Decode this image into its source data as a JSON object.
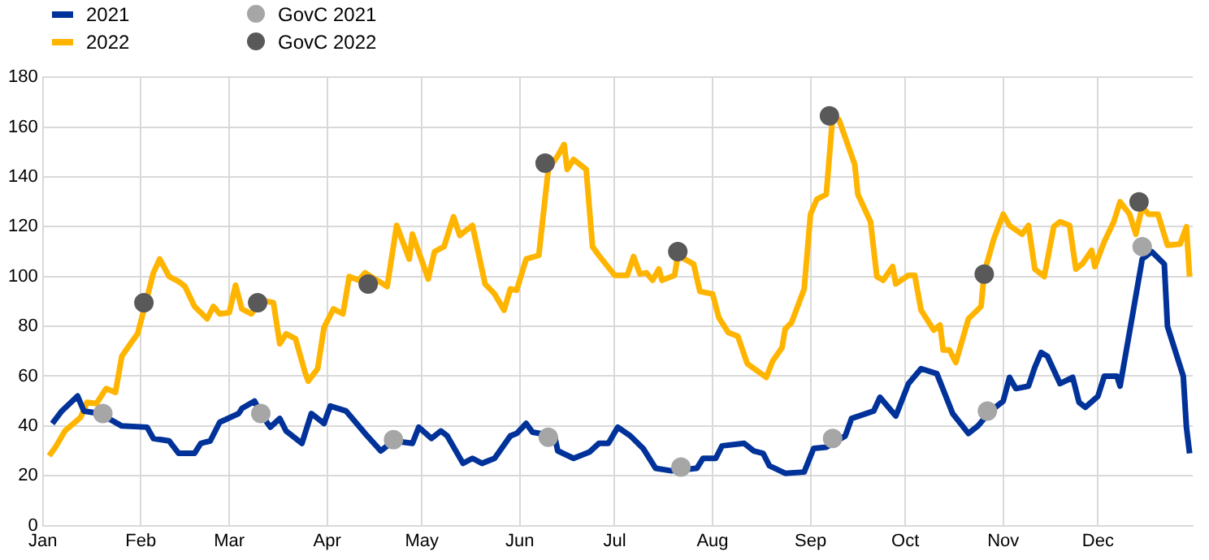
{
  "chart_data": {
    "type": "line",
    "xlim": [
      "--01-01",
      "--12-31"
    ],
    "xticks": [
      {
        "value": "--01-01",
        "label": "Jan"
      },
      {
        "value": "--02-01",
        "label": "Feb"
      },
      {
        "value": "--03-01",
        "label": "Mar"
      },
      {
        "value": "--04-01",
        "label": "Apr"
      },
      {
        "value": "--05-01",
        "label": "May"
      },
      {
        "value": "--06-01",
        "label": "Jun"
      },
      {
        "value": "--07-01",
        "label": "Jul"
      },
      {
        "value": "--08-01",
        "label": "Aug"
      },
      {
        "value": "--09-01",
        "label": "Sep"
      },
      {
        "value": "--10-01",
        "label": "Oct"
      },
      {
        "value": "--11-01",
        "label": "Nov"
      },
      {
        "value": "--12-01",
        "label": "Dec"
      }
    ],
    "ylim": [
      0,
      180
    ],
    "yticks": [
      0,
      20,
      40,
      60,
      80,
      100,
      120,
      140,
      160,
      180
    ],
    "grid": true,
    "legend": "top left",
    "series": [
      {
        "name": "2021",
        "color": "#003299",
        "x": [
          "--01-04",
          "--01-07",
          "--01-12",
          "--01-14",
          "--01-19",
          "--01-26",
          "--02-03",
          "--02-05",
          "--02-10",
          "--02-13",
          "--02-18",
          "--02-20",
          "--02-23",
          "--02-26",
          "--03-04",
          "--03-05",
          "--03-09",
          "--03-11",
          "--03-14",
          "--03-17",
          "--03-19",
          "--03-24",
          "--03-27",
          "--03-31",
          "--04-02",
          "--04-07",
          "--04-13",
          "--04-18",
          "--04-22",
          "--04-28",
          "--04-30",
          "--05-04",
          "--05-07",
          "--05-09",
          "--05-14",
          "--05-17",
          "--05-20",
          "--05-24",
          "--05-29",
          "--05-31",
          "--06-03",
          "--06-05",
          "--06-12",
          "--06-13",
          "--06-18",
          "--06-23",
          "--06-26",
          "--06-29",
          "--07-02",
          "--07-06",
          "--07-10",
          "--07-14",
          "--07-19",
          "--07-27",
          "--07-29",
          "--08-02",
          "--08-04",
          "--08-11",
          "--08-14",
          "--08-17",
          "--08-19",
          "--08-24",
          "--08-30",
          "--09-02",
          "--09-06",
          "--09-12",
          "--09-14",
          "--09-21",
          "--09-23",
          "--09-28",
          "--10-02",
          "--10-06",
          "--10-11",
          "--10-16",
          "--10-21",
          "--10-24",
          "--10-28",
          "--11-01",
          "--11-03",
          "--11-05",
          "--11-09",
          "--11-11",
          "--11-13",
          "--11-15",
          "--11-19",
          "--11-23",
          "--11-25",
          "--11-27",
          "--12-01",
          "--12-03",
          "--12-07",
          "--12-08",
          "--12-12",
          "--12-15",
          "--12-18",
          "--12-22",
          "--12-23",
          "--12-28",
          "--12-29",
          "--12-30"
        ],
        "values": [
          41,
          46,
          52,
          46,
          45,
          40,
          39.5,
          35,
          34,
          29,
          29,
          33,
          34,
          41.5,
          45,
          47,
          50,
          45,
          39.5,
          43,
          38,
          33,
          45,
          41,
          48,
          46,
          37,
          30,
          34,
          33,
          39.5,
          35,
          38,
          36,
          25,
          27,
          25,
          27,
          36,
          37,
          41,
          37.5,
          36,
          30,
          27,
          29.5,
          33,
          33,
          39.5,
          36,
          31,
          23,
          22,
          23,
          27,
          27,
          32,
          33,
          30,
          29,
          24,
          21,
          21.5,
          31,
          31.5,
          36,
          43,
          46,
          51.5,
          44,
          57,
          63,
          61,
          45,
          37,
          40,
          46,
          50,
          59.5,
          55,
          56,
          63.5,
          69.5,
          68,
          57,
          59.5,
          49.5,
          47.5,
          52,
          60,
          60,
          56,
          85,
          107,
          110,
          105,
          80,
          60,
          39.5,
          29
        ]
      },
      {
        "name": "2022",
        "color": "#ffb400",
        "x": [
          "--01-03",
          "--01-05",
          "--01-08",
          "--01-13",
          "--01-15",
          "--01-18",
          "--01-21",
          "--01-24",
          "--01-26",
          "--01-29",
          "--01-31",
          "--02-03",
          "--02-05",
          "--02-07",
          "--02-10",
          "--02-13",
          "--02-15",
          "--02-18",
          "--02-22",
          "--02-24",
          "--02-26",
          "--03-01",
          "--03-03",
          "--03-05",
          "--03-08",
          "--03-11",
          "--03-15",
          "--03-17",
          "--03-19",
          "--03-22",
          "--03-25",
          "--03-26",
          "--03-29",
          "--03-31",
          "--04-03",
          "--04-06",
          "--04-08",
          "--04-11",
          "--04-13",
          "--04-20",
          "--04-23",
          "--04-27",
          "--04-28",
          "--05-03",
          "--05-05",
          "--05-08",
          "--05-11",
          "--05-13",
          "--05-17",
          "--05-21",
          "--05-24",
          "--05-27",
          "--05-29",
          "--05-31",
          "--06-03",
          "--06-07",
          "--06-10",
          "--06-13",
          "--06-15",
          "--06-16",
          "--06-18",
          "--06-22",
          "--06-24",
          "--06-26",
          "--07-01",
          "--07-05",
          "--07-07",
          "--07-09",
          "--07-11",
          "--07-13",
          "--07-15",
          "--07-16",
          "--07-20",
          "--07-21",
          "--07-26",
          "--07-28",
          "--08-01",
          "--08-03",
          "--08-06",
          "--08-09",
          "--08-12",
          "--08-18",
          "--08-20",
          "--08-23",
          "--08-24",
          "--08-26",
          "--08-30",
          "--09-01",
          "--09-03",
          "--09-06",
          "--09-08",
          "--09-10",
          "--09-15",
          "--09-16",
          "--09-20",
          "--09-22",
          "--09-24",
          "--09-27",
          "--09-28",
          "--10-02",
          "--10-04",
          "--10-06",
          "--10-10",
          "--10-12",
          "--10-13",
          "--10-15",
          "--10-17",
          "--10-21",
          "--10-25",
          "--10-26",
          "--10-29",
          "--11-01",
          "--11-03",
          "--11-07",
          "--11-09",
          "--11-11",
          "--11-14",
          "--11-17",
          "--11-19",
          "--11-22",
          "--11-24",
          "--11-26",
          "--11-29",
          "--11-30",
          "--12-03",
          "--12-06",
          "--12-08",
          "--12-11",
          "--12-13",
          "--12-15",
          "--12-17",
          "--12-20",
          "--12-23",
          "--12-27",
          "--12-29",
          "--12-30"
        ],
        "values": [
          28,
          31.5,
          38,
          43.5,
          49.5,
          49,
          55,
          53.5,
          68,
          73.5,
          77,
          91.5,
          101.5,
          107,
          100,
          98,
          96,
          88,
          83,
          88,
          85,
          85.5,
          96.5,
          87,
          85,
          90.5,
          89.5,
          73,
          77,
          75,
          61.5,
          58,
          63,
          79.5,
          87,
          85,
          100,
          98.5,
          101.5,
          96,
          120.5,
          107,
          117,
          99,
          110,
          112,
          124,
          116.5,
          120.5,
          97,
          93,
          86.5,
          95,
          94.5,
          107,
          108.5,
          143,
          148.5,
          153,
          143,
          147,
          143,
          112,
          108.5,
          100.5,
          100.5,
          108,
          101,
          101.5,
          98.5,
          103,
          98.5,
          100.5,
          108.5,
          105,
          94,
          93,
          83.5,
          77.5,
          76,
          65,
          59.5,
          66,
          71.5,
          79,
          81.5,
          95,
          125,
          131,
          133,
          164,
          163,
          145,
          133,
          122,
          100,
          98.5,
          104,
          97,
          100.5,
          100.5,
          86.5,
          78.5,
          80.5,
          70.5,
          70.5,
          65.5,
          83,
          88,
          101.5,
          115,
          125,
          120.5,
          117,
          120.5,
          103,
          100,
          120,
          122,
          120.5,
          103,
          105,
          110.5,
          104,
          114,
          122,
          130,
          125,
          117,
          128,
          125,
          125,
          112.5,
          113,
          120,
          100
        ]
      },
      {
        "name": "GovC 2021",
        "type": "scatter",
        "color": "#a6a6a6",
        "x": [
          "--01-20",
          "--03-11",
          "--04-22",
          "--06-10",
          "--07-22",
          "--09-08",
          "--10-27",
          "--12-15"
        ],
        "values": [
          45,
          45,
          34.5,
          35.5,
          23.5,
          35,
          46,
          112
        ]
      },
      {
        "name": "GovC 2022",
        "type": "scatter",
        "color": "#595959",
        "x": [
          "--02-02",
          "--03-10",
          "--04-14",
          "--06-09",
          "--07-21",
          "--09-07",
          "--10-26",
          "--12-14"
        ],
        "values": [
          89.5,
          89.5,
          97,
          145.5,
          110,
          164.5,
          101,
          130
        ]
      }
    ]
  }
}
